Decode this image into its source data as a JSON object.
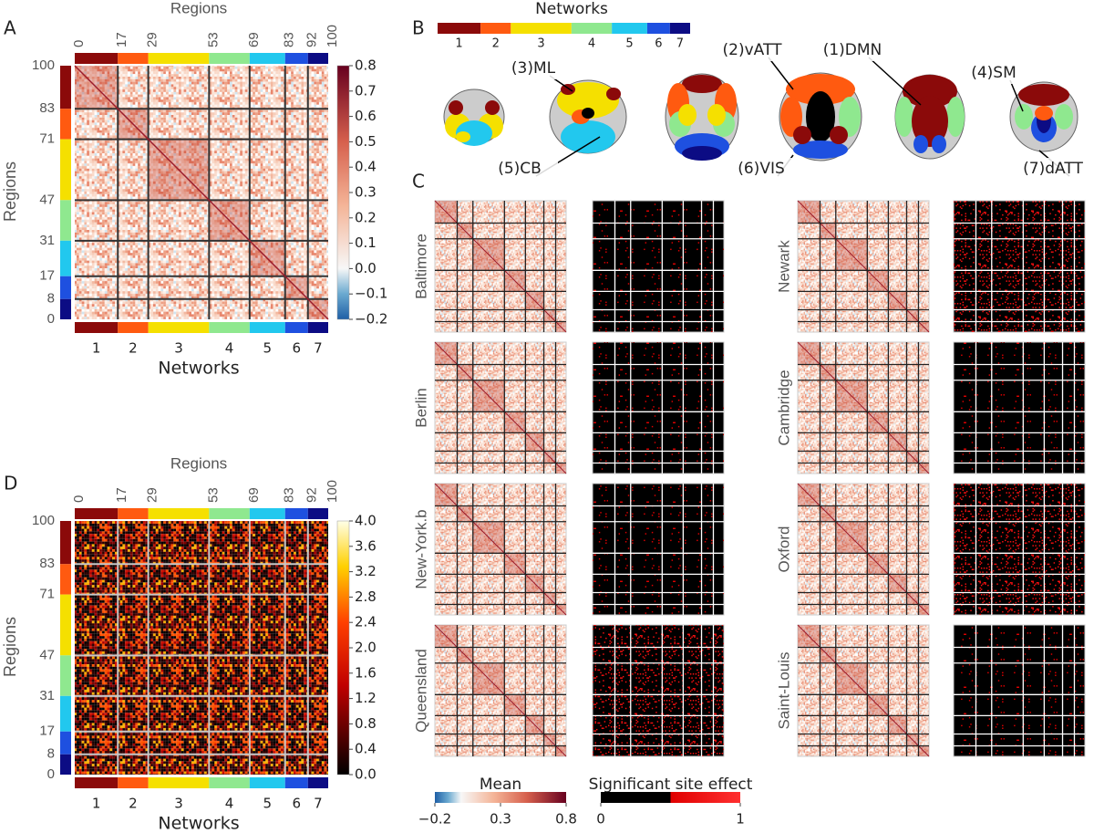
{
  "chart_data": [
    {
      "type": "heatmap",
      "label": "A",
      "title": "Regions",
      "xlabel": "Networks",
      "ylabel": "Regions",
      "xlim": [
        0,
        100
      ],
      "xticks": [
        0,
        17,
        29,
        53,
        69,
        83,
        92,
        100
      ],
      "ylim": [
        0,
        100
      ],
      "yticks": [
        0,
        8,
        17,
        31,
        47,
        71,
        83,
        100
      ],
      "categories": [
        "1",
        "2",
        "3",
        "4",
        "5",
        "6",
        "7"
      ],
      "colors": [
        "#8b0a0a",
        "#ff5a10",
        "#f5e000",
        "#8fe88f",
        "#22c8ee",
        "#1e50e0",
        "#0c0c84"
      ],
      "cmap": "RdBu_r",
      "clim": [
        -0.2,
        0.8
      ],
      "cticks": [
        {
          "value": -0.2,
          "label": "−0.2"
        },
        {
          "value": -0.1,
          "label": "−0.1"
        },
        {
          "value": 0,
          "label": "0.0"
        },
        0.1,
        0.2,
        0.3,
        0.4,
        0.5,
        0.6,
        0.7,
        0.8
      ]
    },
    {
      "type": "heatmap",
      "label": "D",
      "title": "Regions",
      "xlabel": "Networks",
      "ylabel": "Regions",
      "xlim": [
        0,
        100
      ],
      "xticks": [
        0,
        17,
        29,
        53,
        69,
        83,
        92,
        100
      ],
      "ylim": [
        0,
        100
      ],
      "yticks": [
        0,
        8,
        17,
        31,
        47,
        71,
        83,
        100
      ],
      "categories": [
        "1",
        "2",
        "3",
        "4",
        "5",
        "6",
        "7"
      ],
      "colors": [
        "#8b0a0a",
        "#ff5a10",
        "#f5e000",
        "#8fe88f",
        "#22c8ee",
        "#1e50e0",
        "#0c0c84"
      ],
      "cmap": "hot",
      "clim": [
        0,
        4
      ],
      "cticks": [
        {
          "value": 0,
          "label": "0.0"
        },
        0.4,
        0.8,
        1.2,
        1.6,
        {
          "value": 2,
          "label": "2.0"
        },
        2.4,
        2.8,
        3.2,
        3.6,
        {
          "value": 4,
          "label": "4.0"
        }
      ]
    }
  ],
  "panel_b": {
    "label": "B",
    "title": "Networks",
    "annotations": [
      "(3)ML",
      "(2)vATT",
      "(1)DMN",
      "(4)SM",
      "(5)CB",
      "(6)VIS",
      "(7)dATT"
    ]
  },
  "panel_c": {
    "label": "C",
    "sites": [
      "Baltimore",
      "Newark",
      "Berlin",
      "Cambridge",
      "New-York.b",
      "Oxford",
      "Queensland",
      "Saint-Louis"
    ],
    "mean_legend": {
      "title": "Mean",
      "clim": [
        -0.2,
        0.8
      ],
      "ticks": [
        {
          "value": -0.2,
          "label": "−0.2"
        },
        0.3,
        0.8
      ]
    },
    "site_legend": {
      "title": "Significant site effect",
      "clim": [
        0,
        1
      ],
      "ticks": [
        0,
        1
      ]
    }
  }
}
